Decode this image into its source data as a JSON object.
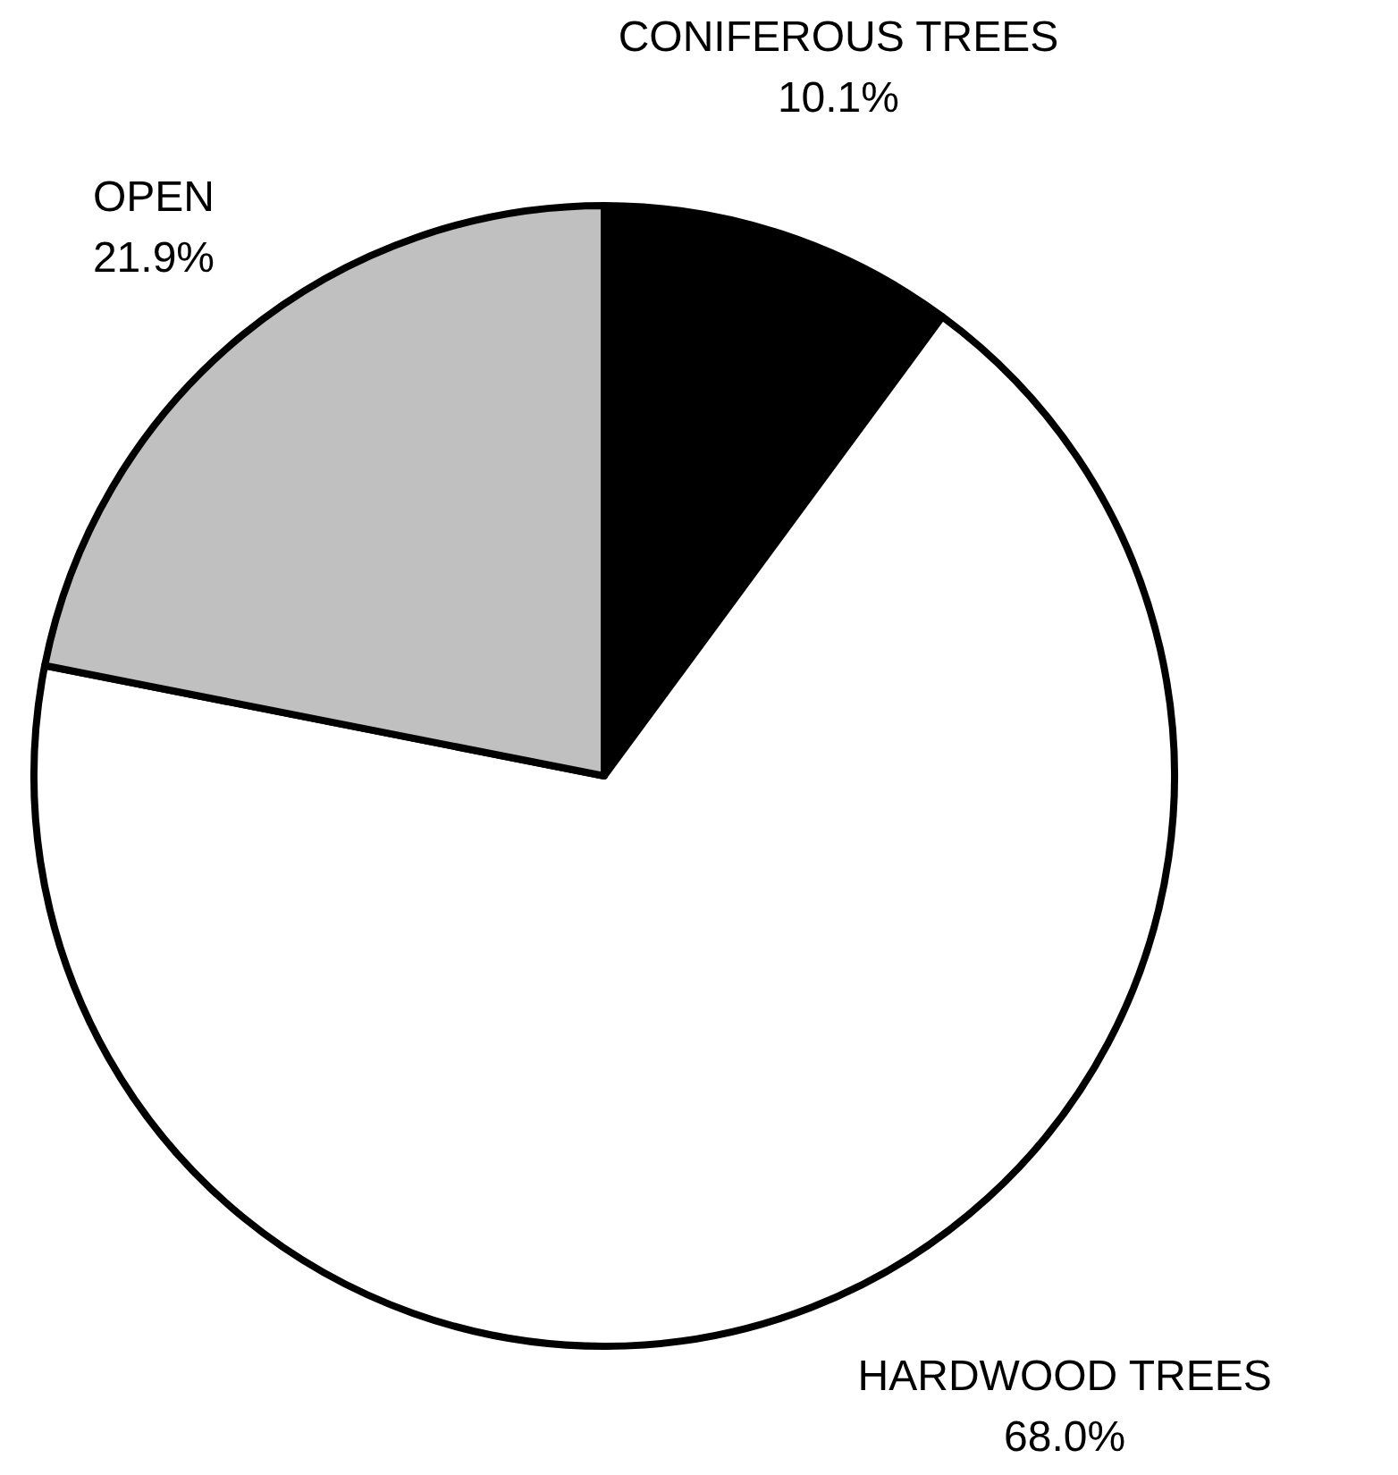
{
  "chart_data": {
    "type": "pie",
    "categories": [
      "CONIFEROUS TREES",
      "HARDWOOD TREES",
      "OPEN"
    ],
    "values": [
      10.1,
      68.0,
      21.9
    ],
    "colors": [
      "#000000",
      "#ffffff",
      "#c0c0c0"
    ],
    "value_labels": [
      "10.1%",
      "68.0%",
      "21.9%"
    ]
  }
}
